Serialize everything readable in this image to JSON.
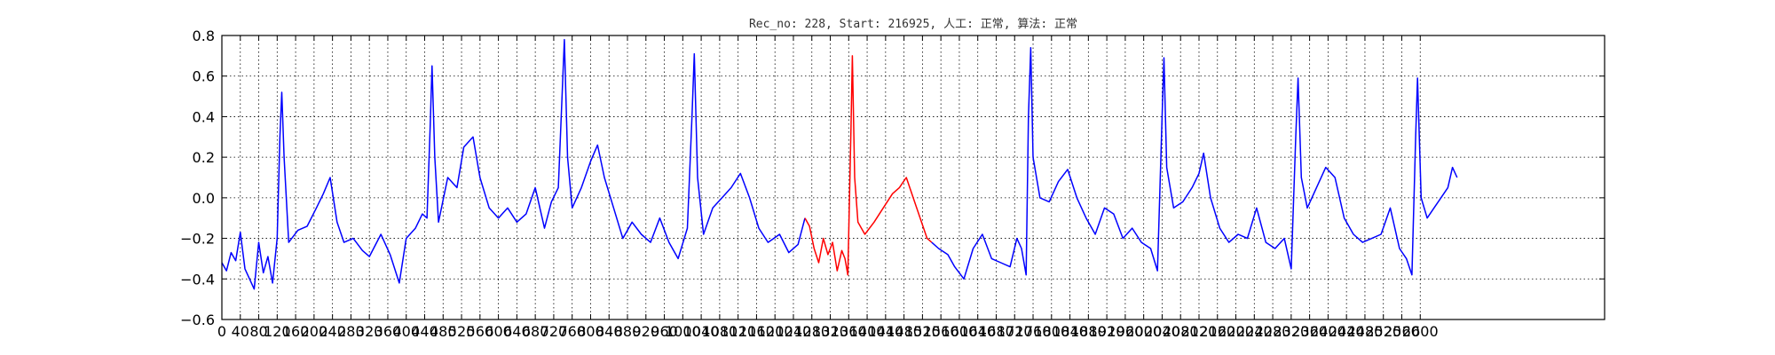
{
  "chart_data": {
    "type": "line",
    "title": "Rec_no: 228, Start: 216925, 人工: 正常, 算法: 正常",
    "xlabel": "",
    "ylabel": "",
    "xlim": [
      0,
      3000
    ],
    "ylim": [
      -0.6,
      0.8
    ],
    "grid": true,
    "x_ticks": [
      0,
      40,
      80,
      120,
      160,
      200,
      240,
      280,
      320,
      360,
      400,
      440,
      480,
      520,
      560,
      600,
      640,
      680,
      720,
      760,
      800,
      840,
      880,
      920,
      960,
      1000,
      1040,
      1080,
      1120,
      1160,
      1200,
      1240,
      1280,
      1320,
      1360,
      1400,
      1440,
      1480,
      1520,
      1560,
      1600,
      1640,
      1680,
      1720,
      1760,
      1800,
      1840,
      1880,
      1920,
      1960,
      2000,
      2040,
      2080,
      2120,
      2160,
      2200,
      2240,
      2280,
      2320,
      2360,
      2400,
      2440,
      2480,
      2520,
      2560,
      2600
    ],
    "y_ticks": [
      -0.6,
      -0.4,
      -0.2,
      0.0,
      0.2,
      0.4,
      0.6,
      0.8
    ],
    "y_tick_labels": [
      "−0.6",
      "−0.4",
      "−0.2",
      "0.0",
      "0.2",
      "0.4",
      "0.6",
      "0.8"
    ],
    "series": [
      {
        "color": "#0000ff",
        "points": [
          [
            0,
            -0.32
          ],
          [
            10,
            -0.36
          ],
          [
            20,
            -0.27
          ],
          [
            30,
            -0.31
          ],
          [
            40,
            -0.17
          ],
          [
            50,
            -0.35
          ],
          [
            60,
            -0.4
          ],
          [
            70,
            -0.45
          ],
          [
            80,
            -0.22
          ],
          [
            90,
            -0.37
          ],
          [
            100,
            -0.29
          ],
          [
            110,
            -0.42
          ],
          [
            120,
            -0.2
          ],
          [
            126,
            0.3
          ],
          [
            130,
            0.52
          ],
          [
            135,
            0.2
          ],
          [
            145,
            -0.22
          ],
          [
            165,
            -0.16
          ],
          [
            185,
            -0.14
          ],
          [
            205,
            -0.05
          ],
          [
            220,
            0.02
          ],
          [
            235,
            0.1
          ],
          [
            250,
            -0.12
          ],
          [
            265,
            -0.22
          ],
          [
            285,
            -0.2
          ],
          [
            305,
            -0.26
          ],
          [
            320,
            -0.29
          ],
          [
            345,
            -0.18
          ],
          [
            365,
            -0.28
          ],
          [
            385,
            -0.42
          ],
          [
            400,
            -0.2
          ],
          [
            420,
            -0.15
          ],
          [
            435,
            -0.08
          ],
          [
            445,
            -0.1
          ],
          [
            452,
            0.35
          ],
          [
            456,
            0.65
          ],
          [
            462,
            0.2
          ],
          [
            470,
            -0.12
          ],
          [
            490,
            0.1
          ],
          [
            510,
            0.05
          ],
          [
            525,
            0.25
          ],
          [
            545,
            0.3
          ],
          [
            560,
            0.1
          ],
          [
            580,
            -0.05
          ],
          [
            600,
            -0.1
          ],
          [
            620,
            -0.05
          ],
          [
            640,
            -0.12
          ],
          [
            660,
            -0.08
          ],
          [
            680,
            0.05
          ],
          [
            700,
            -0.15
          ],
          [
            715,
            -0.02
          ],
          [
            730,
            0.05
          ],
          [
            738,
            0.5
          ],
          [
            743,
            0.78
          ],
          [
            750,
            0.2
          ],
          [
            760,
            -0.05
          ],
          [
            780,
            0.05
          ],
          [
            800,
            0.18
          ],
          [
            815,
            0.26
          ],
          [
            830,
            0.1
          ],
          [
            850,
            -0.05
          ],
          [
            870,
            -0.2
          ],
          [
            890,
            -0.12
          ],
          [
            910,
            -0.18
          ],
          [
            930,
            -0.22
          ],
          [
            950,
            -0.1
          ],
          [
            970,
            -0.22
          ],
          [
            990,
            -0.3
          ],
          [
            1010,
            -0.15
          ],
          [
            1020,
            0.4
          ],
          [
            1025,
            0.71
          ],
          [
            1032,
            0.1
          ],
          [
            1045,
            -0.18
          ],
          [
            1065,
            -0.05
          ],
          [
            1085,
            0.0
          ],
          [
            1105,
            0.05
          ],
          [
            1125,
            0.12
          ],
          [
            1145,
            0.0
          ],
          [
            1165,
            -0.15
          ],
          [
            1185,
            -0.22
          ],
          [
            1210,
            -0.18
          ],
          [
            1230,
            -0.27
          ],
          [
            1250,
            -0.23
          ],
          [
            1265,
            -0.1
          ]
        ]
      },
      {
        "color": "#ff0000",
        "points": [
          [
            1265,
            -0.1
          ],
          [
            1275,
            -0.14
          ],
          [
            1285,
            -0.25
          ],
          [
            1295,
            -0.32
          ],
          [
            1305,
            -0.2
          ],
          [
            1315,
            -0.28
          ],
          [
            1325,
            -0.22
          ],
          [
            1335,
            -0.36
          ],
          [
            1345,
            -0.26
          ],
          [
            1352,
            -0.3
          ],
          [
            1358,
            -0.38
          ],
          [
            1365,
            0.35
          ],
          [
            1368,
            0.7
          ],
          [
            1373,
            0.1
          ],
          [
            1380,
            -0.12
          ],
          [
            1395,
            -0.18
          ],
          [
            1415,
            -0.12
          ],
          [
            1435,
            -0.05
          ],
          [
            1455,
            0.02
          ],
          [
            1470,
            0.05
          ],
          [
            1485,
            0.1
          ],
          [
            1500,
            0.0
          ],
          [
            1515,
            -0.1
          ],
          [
            1530,
            -0.2
          ],
          [
            1540,
            -0.22
          ]
        ]
      },
      {
        "color": "#0000ff",
        "points": [
          [
            1540,
            -0.22
          ],
          [
            1555,
            -0.25
          ],
          [
            1575,
            -0.28
          ],
          [
            1590,
            -0.34
          ],
          [
            1610,
            -0.4
          ],
          [
            1630,
            -0.25
          ],
          [
            1650,
            -0.18
          ],
          [
            1670,
            -0.3
          ],
          [
            1690,
            -0.32
          ],
          [
            1710,
            -0.34
          ],
          [
            1725,
            -0.2
          ],
          [
            1735,
            -0.25
          ],
          [
            1745,
            -0.38
          ],
          [
            1750,
            0.4
          ],
          [
            1755,
            0.74
          ],
          [
            1760,
            0.2
          ],
          [
            1775,
            0.0
          ],
          [
            1795,
            -0.02
          ],
          [
            1815,
            0.08
          ],
          [
            1835,
            0.14
          ],
          [
            1855,
            0.0
          ],
          [
            1875,
            -0.1
          ],
          [
            1895,
            -0.18
          ],
          [
            1915,
            -0.05
          ],
          [
            1935,
            -0.08
          ],
          [
            1955,
            -0.2
          ],
          [
            1975,
            -0.15
          ],
          [
            1995,
            -0.22
          ],
          [
            2015,
            -0.25
          ],
          [
            2030,
            -0.36
          ],
          [
            2040,
            0.4
          ],
          [
            2044,
            0.69
          ],
          [
            2050,
            0.15
          ],
          [
            2065,
            -0.05
          ],
          [
            2085,
            -0.02
          ],
          [
            2105,
            0.05
          ],
          [
            2120,
            0.12
          ],
          [
            2130,
            0.22
          ],
          [
            2145,
            0.0
          ],
          [
            2165,
            -0.15
          ],
          [
            2185,
            -0.22
          ],
          [
            2205,
            -0.18
          ],
          [
            2225,
            -0.2
          ],
          [
            2245,
            -0.05
          ],
          [
            2265,
            -0.22
          ],
          [
            2285,
            -0.25
          ],
          [
            2305,
            -0.2
          ],
          [
            2320,
            -0.35
          ],
          [
            2330,
            0.3
          ],
          [
            2335,
            0.59
          ],
          [
            2342,
            0.1
          ],
          [
            2355,
            -0.05
          ],
          [
            2375,
            0.05
          ],
          [
            2395,
            0.15
          ],
          [
            2415,
            0.1
          ],
          [
            2435,
            -0.1
          ],
          [
            2455,
            -0.18
          ],
          [
            2475,
            -0.22
          ],
          [
            2495,
            -0.2
          ],
          [
            2515,
            -0.18
          ],
          [
            2535,
            -0.05
          ],
          [
            2555,
            -0.25
          ],
          [
            2570,
            -0.3
          ],
          [
            2582,
            -0.38
          ],
          [
            2590,
            0.3
          ],
          [
            2594,
            0.59
          ],
          [
            2602,
            0.0
          ],
          [
            2615,
            -0.1
          ],
          [
            2630,
            -0.05
          ],
          [
            2645,
            0.0
          ],
          [
            2660,
            0.05
          ],
          [
            2670,
            0.15
          ],
          [
            2680,
            0.1
          ]
        ]
      }
    ]
  }
}
